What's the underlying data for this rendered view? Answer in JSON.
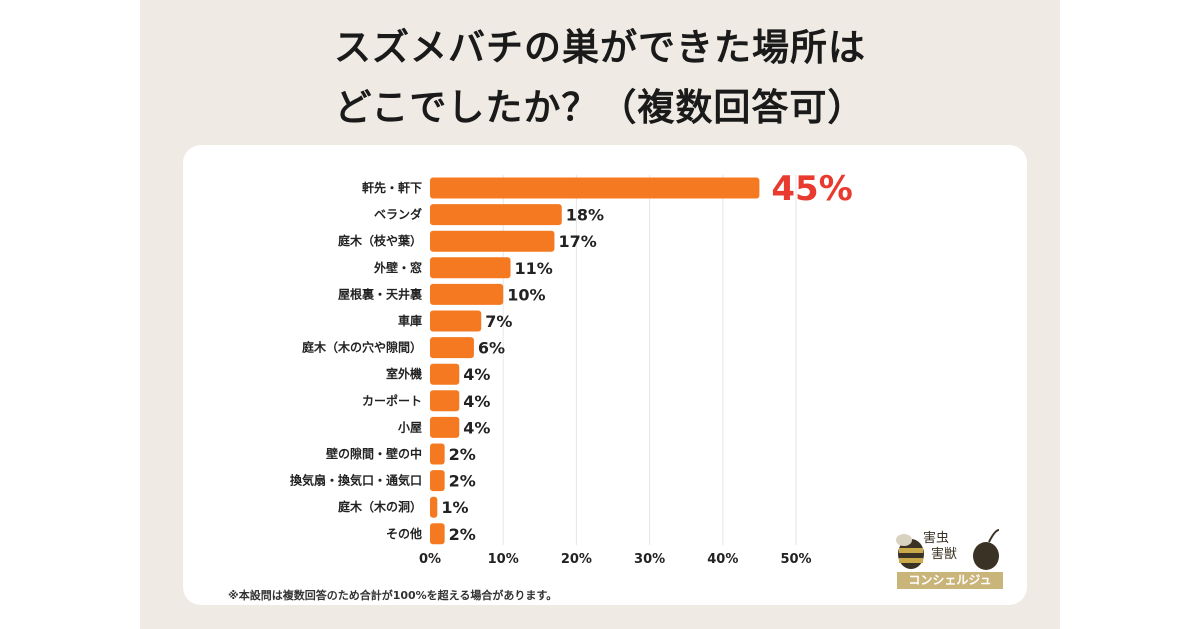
{
  "title": {
    "line1": "スズメバチの巣ができた場所は",
    "line2": "どこでしたか？（複数回答可）"
  },
  "note": "※本設問は複数回答のため合計が100%を超える場合があります。",
  "logo": {
    "line1": "害虫",
    "line2": "害獣",
    "band": "コンシェルジュ"
  },
  "colors": {
    "bar": "#f47920",
    "highlight": "#e83a2e",
    "grid": "#e6e6e6"
  },
  "chart_data": {
    "type": "bar",
    "orientation": "horizontal",
    "title": "スズメバチの巣ができた場所はどこでしたか？（複数回答可）",
    "categories": [
      "軒先・軒下",
      "ベランダ",
      "庭木（枝や葉）",
      "外壁・窓",
      "屋根裏・天井裏",
      "車庫",
      "庭木（木の穴や隙間）",
      "室外機",
      "カーポート",
      "小屋",
      "壁の隙間・壁の中",
      "換気扇・換気口・通気口",
      "庭木（木の洞）",
      "その他"
    ],
    "values": [
      45,
      18,
      17,
      11,
      10,
      7,
      6,
      4,
      4,
      4,
      2,
      2,
      1,
      2
    ],
    "value_labels": [
      "45%",
      "18%",
      "17%",
      "11%",
      "10%",
      "7%",
      "6%",
      "4%",
      "4%",
      "4%",
      "2%",
      "2%",
      "1%",
      "2%"
    ],
    "xlim": [
      0,
      50
    ],
    "xticks": [
      "0%",
      "10%",
      "20%",
      "30%",
      "40%",
      "50%"
    ],
    "grid": true,
    "xlabel": "",
    "ylabel": ""
  }
}
